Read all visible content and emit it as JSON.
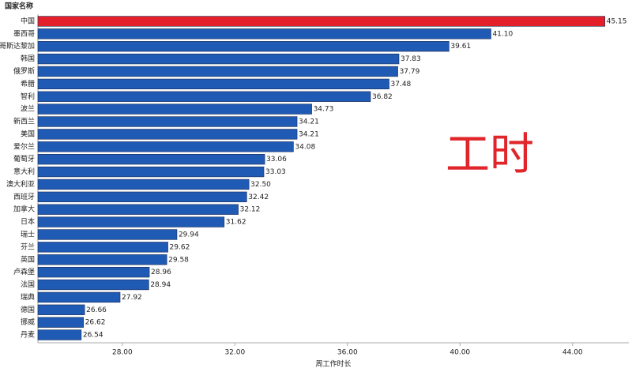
{
  "chart_data": {
    "type": "hbar",
    "category_header": "国家名称",
    "x_label": "周工作时长",
    "annotation": "工时",
    "categories": [
      "中国",
      "墨西哥",
      "哥斯达黎加",
      "韩国",
      "俄罗斯",
      "希腊",
      "智利",
      "波兰",
      "新西兰",
      "美国",
      "爱尔兰",
      "葡萄牙",
      "意大利",
      "澳大利亚",
      "西班牙",
      "加拿大",
      "日本",
      "瑞士",
      "芬兰",
      "英国",
      "卢森堡",
      "法国",
      "瑞典",
      "德国",
      "挪威",
      "丹麦"
    ],
    "values": [
      45.15,
      41.1,
      39.61,
      37.83,
      37.79,
      37.48,
      36.82,
      34.73,
      34.21,
      34.21,
      34.08,
      33.06,
      33.03,
      32.5,
      32.42,
      32.12,
      31.62,
      29.94,
      29.62,
      29.58,
      28.96,
      28.94,
      27.92,
      26.66,
      26.62,
      26.54
    ],
    "value_labels": [
      "45.15",
      "41.10",
      "39.61",
      "37.83",
      "37.79",
      "37.48",
      "36.82",
      "34.73",
      "34.21",
      "34.21",
      "34.08",
      "33.06",
      "33.03",
      "32.50",
      "32.42",
      "32.12",
      "31.62",
      "29.94",
      "29.62",
      "29.58",
      "28.96",
      "28.94",
      "27.92",
      "26.66",
      "26.62",
      "26.54"
    ],
    "colors": [
      "#e3202a",
      "#1f5bb5",
      "#1f5bb5",
      "#1f5bb5",
      "#1f5bb5",
      "#1f5bb5",
      "#1f5bb5",
      "#1f5bb5",
      "#1f5bb5",
      "#1f5bb5",
      "#1f5bb5",
      "#1f5bb5",
      "#1f5bb5",
      "#1f5bb5",
      "#1f5bb5",
      "#1f5bb5",
      "#1f5bb5",
      "#1f5bb5",
      "#1f5bb5",
      "#1f5bb5",
      "#1f5bb5",
      "#1f5bb5",
      "#1f5bb5",
      "#1f5bb5",
      "#1f5bb5",
      "#1f5bb5"
    ],
    "xlim": [
      25,
      46
    ],
    "xticks": [
      {
        "value": 28,
        "label": "28.00"
      },
      {
        "value": 32,
        "label": "32.00"
      },
      {
        "value": 36,
        "label": "36.00"
      },
      {
        "value": 40,
        "label": "40.00"
      },
      {
        "value": 44,
        "label": "44.00"
      }
    ]
  }
}
